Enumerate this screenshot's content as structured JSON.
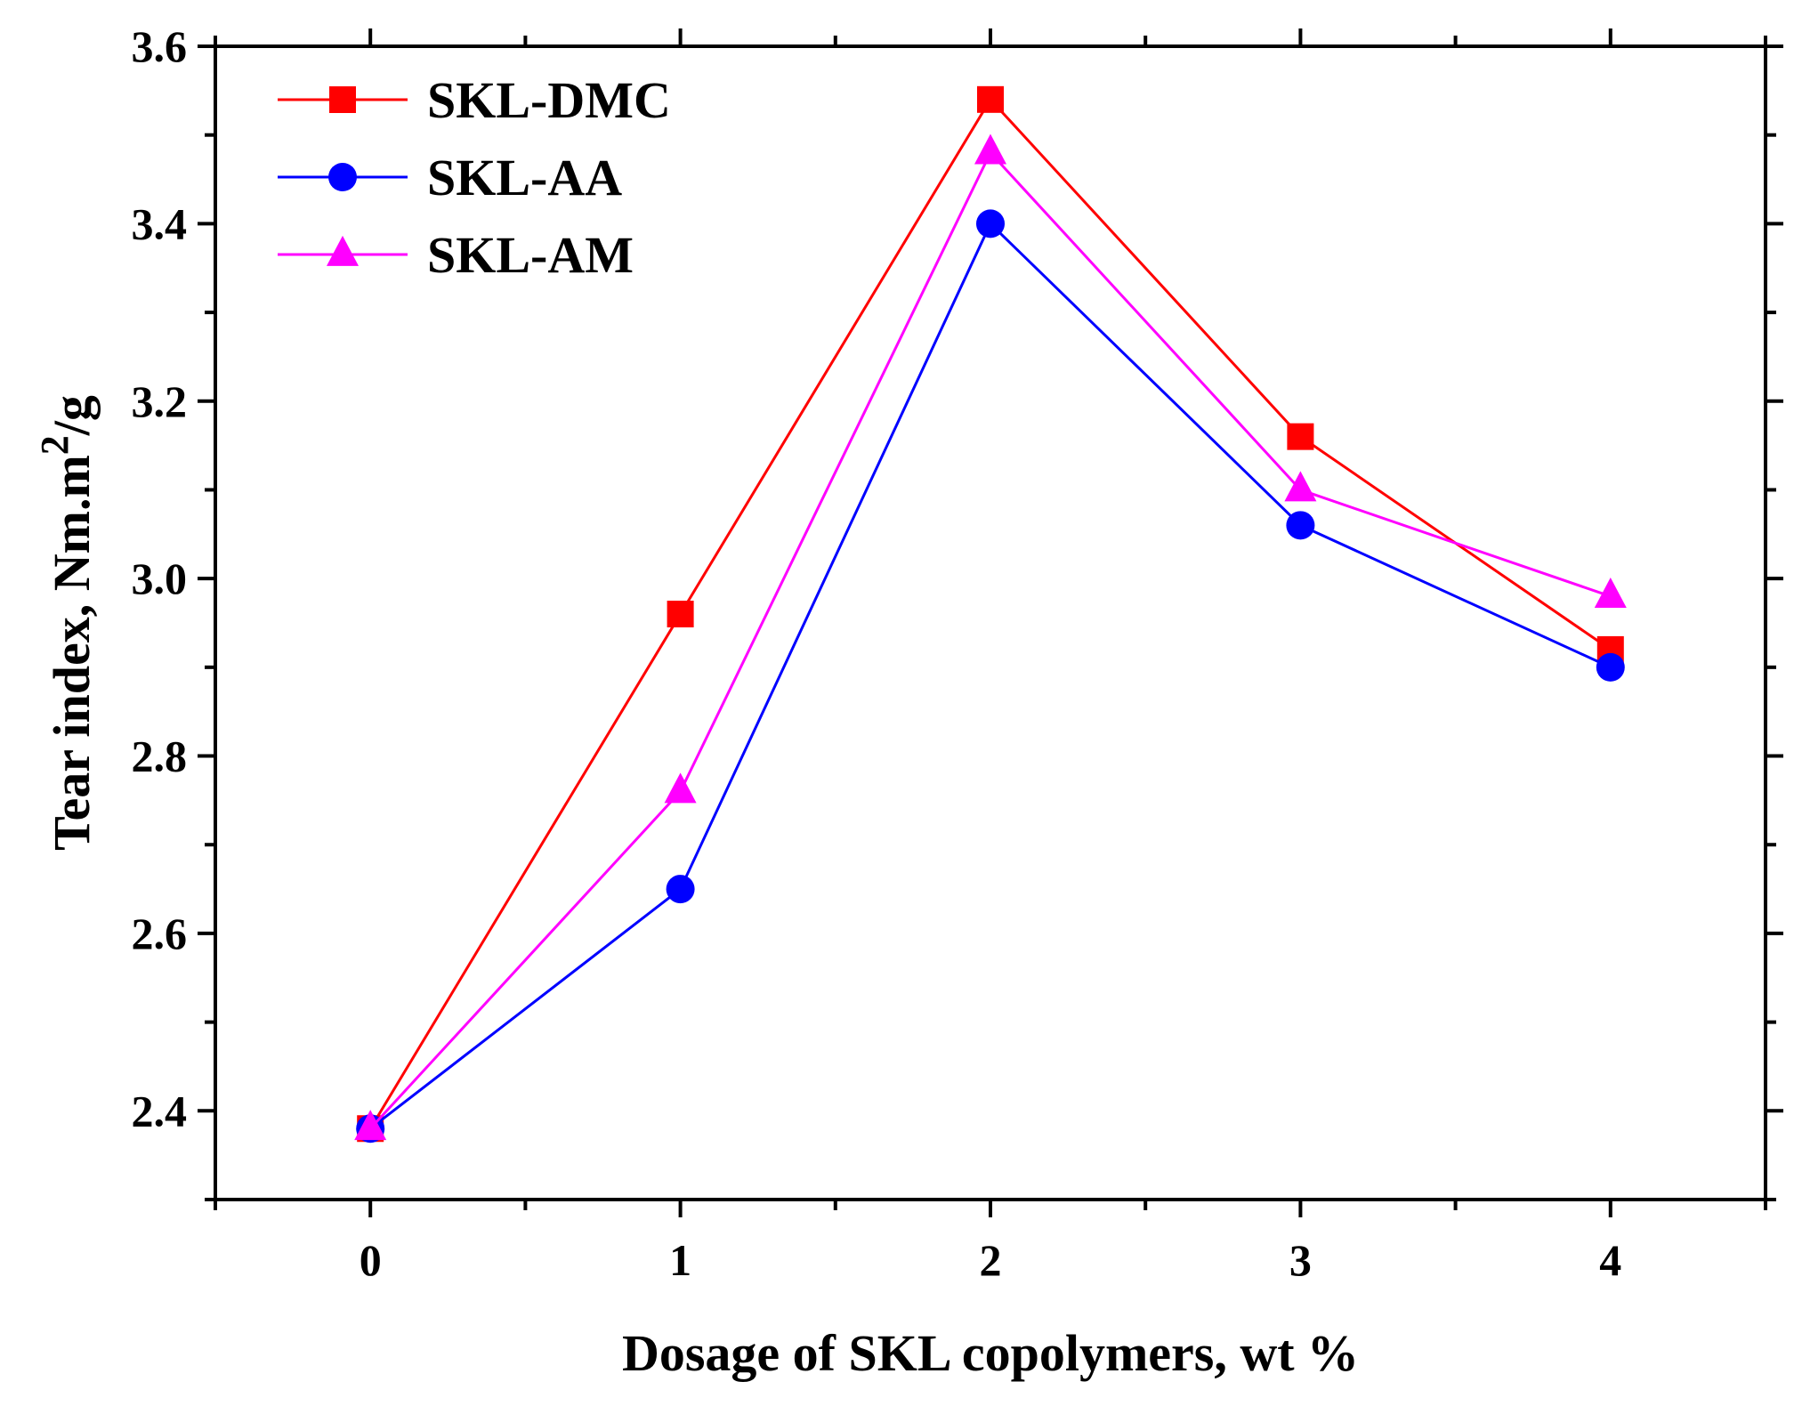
{
  "chart_data": {
    "type": "line",
    "title": "",
    "xlabel": "Dosage of SKL copolymers, wt %",
    "ylabel": {
      "main": "Tear index, Nm.m",
      "superscript": "2",
      "suffix": "/g"
    },
    "x": [
      0,
      1,
      2,
      3,
      4
    ],
    "xlim": [
      -0.5,
      4.5
    ],
    "ylim": [
      2.3,
      3.6
    ],
    "x_ticks": [
      "0",
      "1",
      "2",
      "3",
      "4"
    ],
    "y_ticks": [
      "2.4",
      "2.6",
      "2.8",
      "3.0",
      "3.2",
      "3.4",
      "3.6"
    ],
    "grid": false,
    "legend_position": "top-left",
    "series": [
      {
        "name": "SKL-DMC",
        "color": "#ff0000",
        "marker": "square",
        "values": [
          2.38,
          2.96,
          3.54,
          3.16,
          2.92
        ]
      },
      {
        "name": "SKL-AA",
        "color": "#0000ff",
        "marker": "circle",
        "values": [
          2.38,
          2.65,
          3.4,
          3.06,
          2.9
        ]
      },
      {
        "name": "SKL-AM",
        "color": "#ff00ff",
        "marker": "triangle",
        "values": [
          2.38,
          2.76,
          3.48,
          3.1,
          2.98
        ]
      }
    ]
  }
}
